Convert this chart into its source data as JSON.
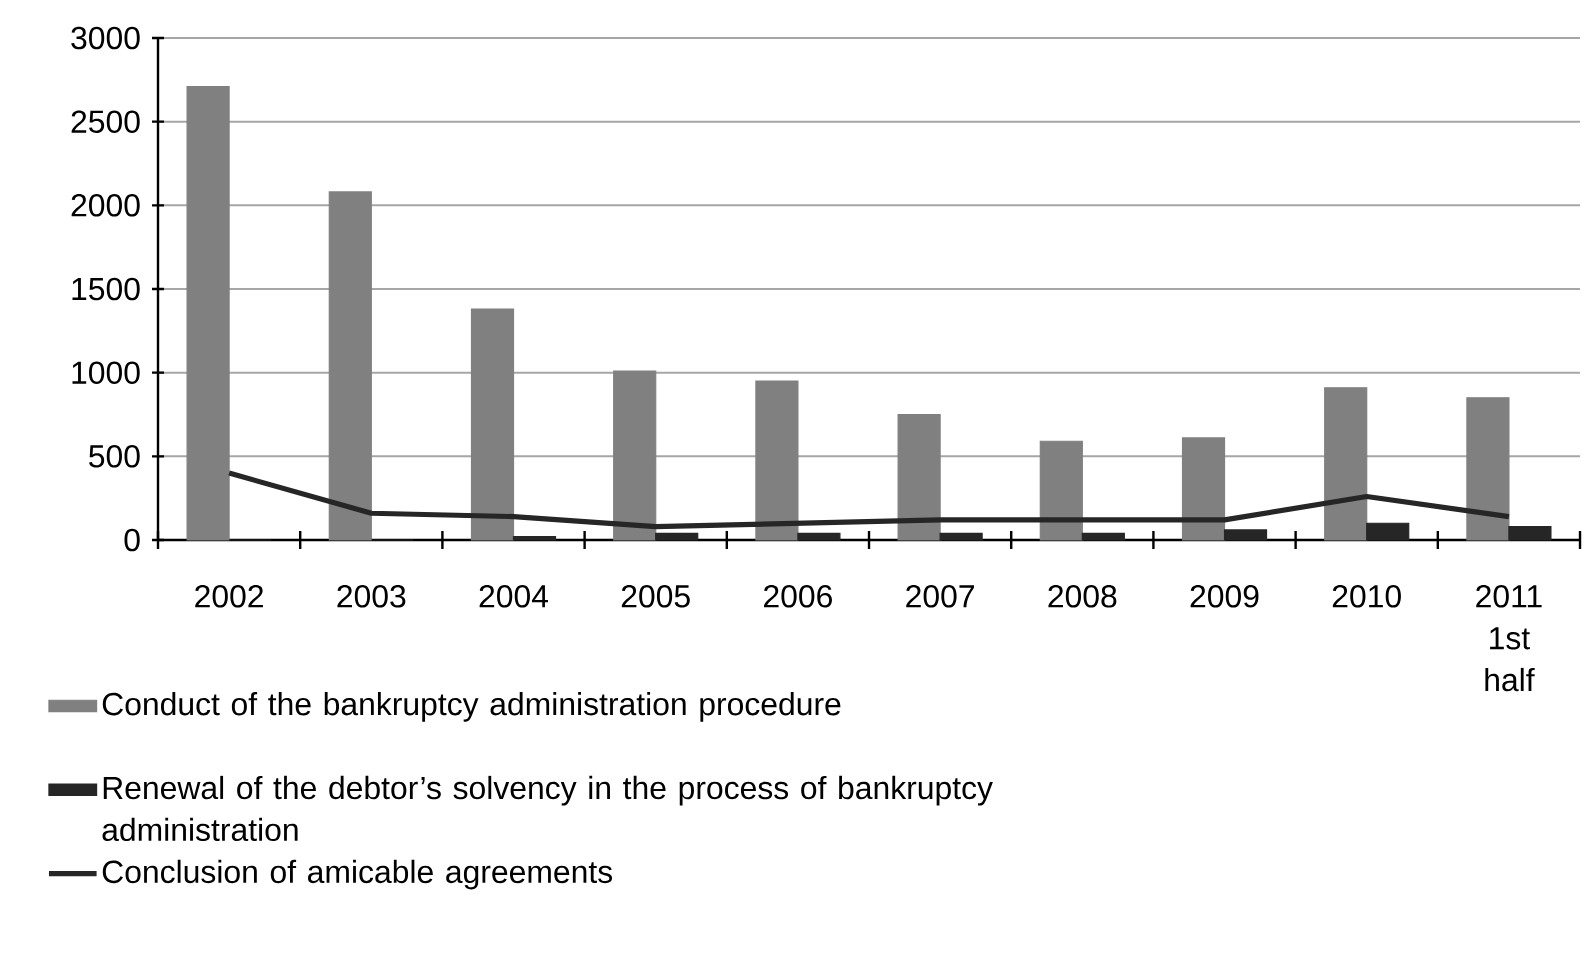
{
  "chart_data": {
    "type": "bar",
    "categories": [
      "2002",
      "2003",
      "2004",
      "2005",
      "2006",
      "2007",
      "2008",
      "2009",
      "2010",
      "2011 1st half"
    ],
    "series": [
      {
        "name": "Conduct of the bankruptcy administration procedure",
        "color": "#808080",
        "values": [
          2710,
          2080,
          1380,
          1010,
          950,
          750,
          590,
          610,
          910,
          850
        ]
      },
      {
        "name": "Renewal of the debtor’s solvency in the process of bankruptcy administration",
        "color": "#262626",
        "values": [
          0,
          0,
          20,
          40,
          40,
          40,
          40,
          60,
          100,
          80
        ]
      },
      {
        "name": "Conclusion of amicable agreements",
        "type": "line",
        "color": "#262626",
        "values": [
          400,
          160,
          140,
          80,
          100,
          120,
          120,
          120,
          260,
          140
        ]
      }
    ],
    "ylim": [
      0,
      3000
    ],
    "yticks": [
      0,
      500,
      1000,
      1500,
      2000,
      2500,
      3000
    ],
    "grid": "y",
    "legend": "bottom",
    "marker": "none",
    "line_style": "solid"
  }
}
